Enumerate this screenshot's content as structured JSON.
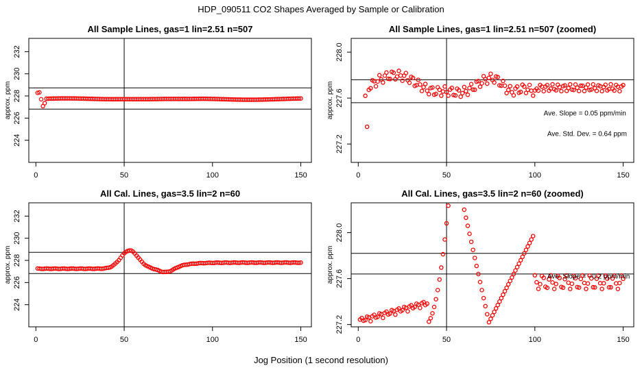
{
  "figure": {
    "title": "HDP_090511  CO2 Shapes Averaged by Sample or Calibration",
    "xlabel": "Jog Position (1 second resolution)"
  },
  "colors": {
    "points": "#ff0000",
    "axes": "#000000",
    "background": "#ffffff"
  },
  "chart_data": [
    {
      "type": "scatter",
      "title": "All Sample Lines, gas=1 lin=2.51 n=507",
      "ylabel": "approx. ppm",
      "xlim": [
        -4,
        156
      ],
      "ylim": [
        222.0,
        233.2
      ],
      "xticks": [
        0,
        50,
        100,
        150
      ],
      "yticks": [
        224,
        226,
        228,
        230,
        232
      ],
      "hlines": [
        228.73,
        226.81
      ],
      "vline": 50,
      "profile": "sample",
      "n_points": 150,
      "annotations": []
    },
    {
      "type": "scatter",
      "title": "All Sample Lines, gas=1 lin=2.51 n=507 (zoomed)",
      "ylabel": "approx. ppm",
      "xlim": [
        -4,
        156
      ],
      "ylim": [
        227.04,
        228.12
      ],
      "xticks": [
        0,
        50,
        100,
        150
      ],
      "yticks": [
        227.2,
        227.6,
        228.0
      ],
      "tick_format": 1,
      "hlines": [
        227.76,
        227.56
      ],
      "vline": 50,
      "profile": "sample",
      "n_points": 150,
      "annotations": [
        {
          "text": "Ave. Slope =  0.05  ppm/min",
          "x": 105,
          "y": 227.45
        },
        {
          "text": "Ave. Std. Dev. =  0.64  ppm",
          "x": 107,
          "y": 227.27
        }
      ]
    },
    {
      "type": "scatter",
      "title": "All Cal. Lines, gas=3.5 lin=2 n=60",
      "ylabel": "approx. ppm",
      "xlim": [
        -4,
        156
      ],
      "ylim": [
        222.0,
        233.2
      ],
      "xticks": [
        0,
        50,
        100,
        150
      ],
      "yticks": [
        224,
        226,
        228,
        230,
        232
      ],
      "hlines": [
        228.73,
        226.81
      ],
      "vline": 50,
      "profile": "cal",
      "n_points": 150,
      "annotations": []
    },
    {
      "type": "scatter",
      "title": "All Cal. Lines, gas=3.5 lin=2 n=60 (zoomed)",
      "ylabel": "approx. ppm",
      "xlim": [
        -4,
        156
      ],
      "ylim": [
        227.18,
        228.26
      ],
      "xticks": [
        0,
        50,
        100,
        150
      ],
      "yticks": [
        227.2,
        227.6,
        228.0
      ],
      "tick_format": 1,
      "hlines": [
        227.82,
        227.64
      ],
      "vline": 50,
      "profile": "calzoom",
      "n_points": 150,
      "annotations": [
        {
          "text": "Ave. Slope =  −0.2  ppm/min",
          "x": 107,
          "y": 227.6
        }
      ]
    }
  ]
}
